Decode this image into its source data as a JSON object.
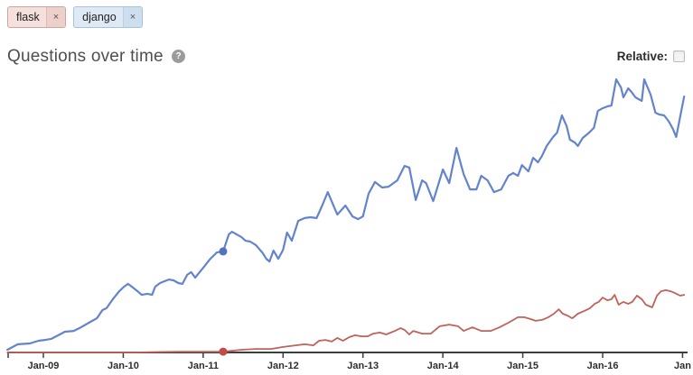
{
  "tags": [
    {
      "label": "flask",
      "remove_label": "×",
      "color": "#c0625b"
    },
    {
      "label": "django",
      "remove_label": "×",
      "color": "#6384cc"
    }
  ],
  "header": {
    "title": "Questions over time",
    "help_icon": "?",
    "relative_label": "Relative:",
    "relative_checked": false
  },
  "chart_data": {
    "type": "line",
    "title": "Questions over time",
    "xlabel": "",
    "ylabel": "",
    "grid": false,
    "legend": "none (series colors match tag chips)",
    "y_axis_note": "y-axis unlabeled; values are relative units 0-100 where 100 = chart top",
    "ylim": [
      0,
      105
    ],
    "x_axis": {
      "tick_years": [
        2009,
        2010,
        2011,
        2012,
        2013,
        2014,
        2015,
        2016,
        2017
      ],
      "tick_labels": [
        "Jan-09",
        "Jan-10",
        "Jan-11",
        "Jan-12",
        "Jan-13",
        "Jan-14",
        "Jan-15",
        "Jan-16",
        "Jan"
      ],
      "axis_color": "#3d3d3d"
    },
    "series": [
      {
        "name": "django",
        "color": "#6384cc",
        "marker": {
          "x": 2011.25,
          "v": 37,
          "color": "#5172c0"
        },
        "points": [
          [
            2008.55,
            1
          ],
          [
            2008.68,
            3
          ],
          [
            2008.83,
            3.3
          ],
          [
            2008.94,
            4.3
          ],
          [
            2009.02,
            4.6
          ],
          [
            2009.1,
            5
          ],
          [
            2009.16,
            5.9
          ],
          [
            2009.27,
            7.6
          ],
          [
            2009.38,
            7.9
          ],
          [
            2009.47,
            9.2
          ],
          [
            2009.57,
            10.9
          ],
          [
            2009.67,
            12.5
          ],
          [
            2009.74,
            15.5
          ],
          [
            2009.79,
            16.2
          ],
          [
            2009.87,
            19.5
          ],
          [
            2009.95,
            22.4
          ],
          [
            2010.01,
            24.1
          ],
          [
            2010.06,
            25.1
          ],
          [
            2010.12,
            23.8
          ],
          [
            2010.18,
            22.4
          ],
          [
            2010.23,
            21.1
          ],
          [
            2010.3,
            21.5
          ],
          [
            2010.36,
            21.1
          ],
          [
            2010.4,
            24.1
          ],
          [
            2010.46,
            25.4
          ],
          [
            2010.52,
            26.1
          ],
          [
            2010.57,
            26.7
          ],
          [
            2010.63,
            26.4
          ],
          [
            2010.69,
            25.4
          ],
          [
            2010.74,
            25.1
          ],
          [
            2010.8,
            28.4
          ],
          [
            2010.85,
            29.4
          ],
          [
            2010.9,
            27.4
          ],
          [
            2011.0,
            31
          ],
          [
            2011.09,
            34.3
          ],
          [
            2011.17,
            36.6
          ],
          [
            2011.25,
            37
          ],
          [
            2011.32,
            43.2
          ],
          [
            2011.36,
            44.2
          ],
          [
            2011.42,
            43.2
          ],
          [
            2011.48,
            42.2
          ],
          [
            2011.53,
            40.9
          ],
          [
            2011.59,
            40.6
          ],
          [
            2011.66,
            39.3
          ],
          [
            2011.74,
            36.6
          ],
          [
            2011.79,
            34.3
          ],
          [
            2011.83,
            33.3
          ],
          [
            2011.88,
            37.3
          ],
          [
            2011.94,
            34.3
          ],
          [
            2012.0,
            37.6
          ],
          [
            2012.05,
            43.9
          ],
          [
            2012.11,
            40.9
          ],
          [
            2012.19,
            48.2
          ],
          [
            2012.27,
            49.2
          ],
          [
            2012.34,
            49.5
          ],
          [
            2012.42,
            49.2
          ],
          [
            2012.49,
            53.8
          ],
          [
            2012.56,
            58.7
          ],
          [
            2012.64,
            53.1
          ],
          [
            2012.68,
            50.5
          ],
          [
            2012.78,
            53.8
          ],
          [
            2012.87,
            49.8
          ],
          [
            2012.94,
            48.8
          ],
          [
            2013.0,
            49.8
          ],
          [
            2013.07,
            58.1
          ],
          [
            2013.15,
            62.4
          ],
          [
            2013.24,
            60.4
          ],
          [
            2013.32,
            60.7
          ],
          [
            2013.43,
            63
          ],
          [
            2013.52,
            68.3
          ],
          [
            2013.58,
            67.7
          ],
          [
            2013.66,
            55.8
          ],
          [
            2013.74,
            63
          ],
          [
            2013.79,
            62
          ],
          [
            2013.88,
            55.4
          ],
          [
            2014.0,
            67
          ],
          [
            2014.08,
            62
          ],
          [
            2014.17,
            74.9
          ],
          [
            2014.26,
            65.3
          ],
          [
            2014.34,
            59.7
          ],
          [
            2014.42,
            59.7
          ],
          [
            2014.48,
            64.7
          ],
          [
            2014.56,
            63
          ],
          [
            2014.64,
            58.7
          ],
          [
            2014.73,
            59.7
          ],
          [
            2014.82,
            64.7
          ],
          [
            2014.88,
            65.7
          ],
          [
            2014.94,
            64.7
          ],
          [
            2014.99,
            68.6
          ],
          [
            2015.07,
            66.3
          ],
          [
            2015.13,
            71.3
          ],
          [
            2015.19,
            69.6
          ],
          [
            2015.24,
            71.9
          ],
          [
            2015.3,
            75.6
          ],
          [
            2015.38,
            78.9
          ],
          [
            2015.43,
            80.5
          ],
          [
            2015.49,
            86.8
          ],
          [
            2015.55,
            82.8
          ],
          [
            2015.59,
            77.9
          ],
          [
            2015.65,
            76.9
          ],
          [
            2015.69,
            75.6
          ],
          [
            2015.75,
            78.5
          ],
          [
            2015.83,
            80.5
          ],
          [
            2015.89,
            82.2
          ],
          [
            2015.94,
            88.4
          ],
          [
            2016.0,
            89.4
          ],
          [
            2016.06,
            90.1
          ],
          [
            2016.11,
            90.4
          ],
          [
            2016.17,
            100
          ],
          [
            2016.23,
            97
          ],
          [
            2016.26,
            93.4
          ],
          [
            2016.32,
            96.7
          ],
          [
            2016.36,
            95.4
          ],
          [
            2016.41,
            93.4
          ],
          [
            2016.49,
            92.1
          ],
          [
            2016.52,
            100
          ],
          [
            2016.6,
            94.4
          ],
          [
            2016.66,
            87.8
          ],
          [
            2016.71,
            87.1
          ],
          [
            2016.77,
            86.8
          ],
          [
            2016.83,
            84.5
          ],
          [
            2016.88,
            81.8
          ],
          [
            2016.92,
            78.9
          ],
          [
            2017.02,
            93.7
          ]
        ]
      },
      {
        "name": "flask",
        "color": "#c0625b",
        "marker": {
          "x": 2011.25,
          "v": 0.3,
          "color": "#c04b47"
        },
        "points": [
          [
            2008.55,
            0
          ],
          [
            2009.5,
            0
          ],
          [
            2010.15,
            0
          ],
          [
            2010.49,
            0.2
          ],
          [
            2010.72,
            0.3
          ],
          [
            2011.0,
            0.3
          ],
          [
            2011.25,
            0.3
          ],
          [
            2011.48,
            1
          ],
          [
            2011.66,
            1.3
          ],
          [
            2011.85,
            1.3
          ],
          [
            2012.0,
            2
          ],
          [
            2012.16,
            2.6
          ],
          [
            2012.27,
            3
          ],
          [
            2012.38,
            2.6
          ],
          [
            2012.45,
            4.3
          ],
          [
            2012.53,
            4.6
          ],
          [
            2012.61,
            4
          ],
          [
            2012.68,
            5.3
          ],
          [
            2012.75,
            4.3
          ],
          [
            2012.83,
            5.6
          ],
          [
            2012.9,
            6.3
          ],
          [
            2012.98,
            5.9
          ],
          [
            2013.06,
            5.9
          ],
          [
            2013.13,
            6.9
          ],
          [
            2013.21,
            7.3
          ],
          [
            2013.29,
            6.6
          ],
          [
            2013.4,
            7.9
          ],
          [
            2013.47,
            8.9
          ],
          [
            2013.52,
            8.3
          ],
          [
            2013.58,
            6.6
          ],
          [
            2013.63,
            7.9
          ],
          [
            2013.74,
            6.9
          ],
          [
            2013.85,
            6.9
          ],
          [
            2013.96,
            9.6
          ],
          [
            2014.08,
            10.2
          ],
          [
            2014.19,
            9.6
          ],
          [
            2014.26,
            7.9
          ],
          [
            2014.37,
            9.2
          ],
          [
            2014.48,
            7.9
          ],
          [
            2014.6,
            7.9
          ],
          [
            2014.71,
            9.2
          ],
          [
            2014.82,
            10.9
          ],
          [
            2014.94,
            12.9
          ],
          [
            2015.02,
            12.9
          ],
          [
            2015.1,
            12.2
          ],
          [
            2015.16,
            11.6
          ],
          [
            2015.24,
            11.9
          ],
          [
            2015.32,
            12.9
          ],
          [
            2015.39,
            14.2
          ],
          [
            2015.45,
            15.8
          ],
          [
            2015.5,
            14.2
          ],
          [
            2015.56,
            13.5
          ],
          [
            2015.62,
            12.5
          ],
          [
            2015.69,
            14.2
          ],
          [
            2015.77,
            15.2
          ],
          [
            2015.84,
            16.2
          ],
          [
            2015.9,
            17.8
          ],
          [
            2015.95,
            18.5
          ],
          [
            2016.0,
            20.1
          ],
          [
            2016.06,
            19.1
          ],
          [
            2016.11,
            19.5
          ],
          [
            2016.15,
            21.1
          ],
          [
            2016.2,
            17.5
          ],
          [
            2016.26,
            18.5
          ],
          [
            2016.32,
            17.8
          ],
          [
            2016.37,
            18.5
          ],
          [
            2016.43,
            20.8
          ],
          [
            2016.49,
            19.5
          ],
          [
            2016.54,
            17.5
          ],
          [
            2016.62,
            16.5
          ],
          [
            2016.68,
            20.8
          ],
          [
            2016.73,
            22.4
          ],
          [
            2016.79,
            22.8
          ],
          [
            2016.85,
            22.4
          ],
          [
            2016.9,
            21.8
          ],
          [
            2016.97,
            20.8
          ],
          [
            2017.02,
            21.1
          ]
        ]
      }
    ]
  }
}
